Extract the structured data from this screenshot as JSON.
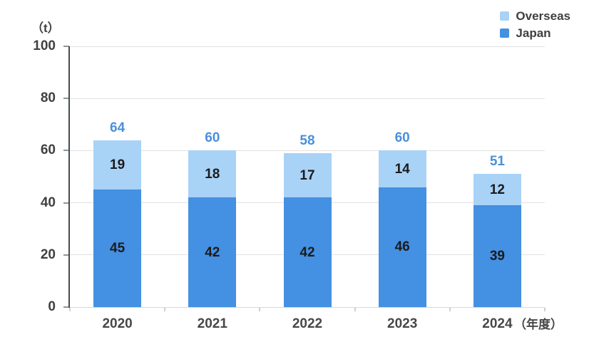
{
  "unit_label": "（t）",
  "x_axis_suffix": "（年度）",
  "legend": {
    "items": [
      {
        "label": "Overseas",
        "color": "#a9d2f7"
      },
      {
        "label": "Japan",
        "color": "#4490e2"
      }
    ]
  },
  "colors": {
    "japan_bar": "#4490e2",
    "overseas_bar": "#a9d2f7",
    "total_label": "#4a90dc",
    "axis_text": "#404040",
    "bar_value_text": "#1b1b1b",
    "gridline": "#e2e2e2",
    "baseline": "#d9d9d9",
    "y_axis_line": "#454b50"
  },
  "chart_data": {
    "type": "bar",
    "stacked": true,
    "title": "",
    "categories": [
      "2020",
      "2021",
      "2022",
      "2023",
      "2024"
    ],
    "series": [
      {
        "name": "Japan",
        "values": [
          45,
          42,
          42,
          46,
          39
        ],
        "color": "#4490e2"
      },
      {
        "name": "Overseas",
        "values": [
          19,
          18,
          17,
          14,
          12
        ],
        "color": "#a9d2f7"
      }
    ],
    "totals": [
      64,
      60,
      58,
      60,
      51
    ],
    "ylabel": "（t）",
    "xlabel_suffix": "（年度）",
    "ylim": [
      0,
      100
    ],
    "yticks": [
      0,
      20,
      40,
      60,
      80,
      100
    ],
    "grid": true,
    "legend_position": "top-right"
  }
}
